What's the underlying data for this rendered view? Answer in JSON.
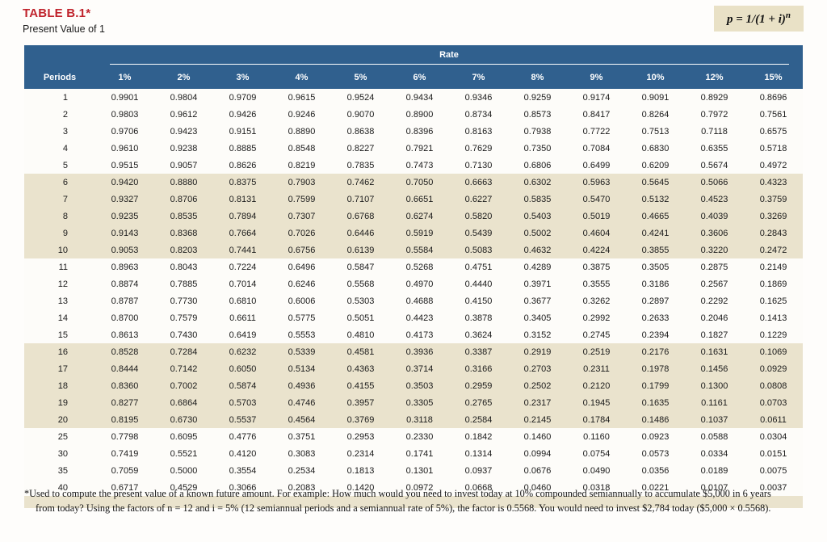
{
  "header": {
    "title": "TABLE B.1*",
    "subtitle": "Present Value of 1",
    "formula_base": "p = 1/(1 + i)",
    "formula_exponent": "n"
  },
  "colors": {
    "header_blue": "#30608e",
    "band_beige": "#eae3cd",
    "formula_box_tan": "#e9e1c6",
    "title_red": "#c0232c"
  },
  "table": {
    "rate_label": "Rate",
    "periods_label": "Periods",
    "rate_headers": [
      "1%",
      "2%",
      "3%",
      "4%",
      "5%",
      "6%",
      "7%",
      "8%",
      "9%",
      "10%",
      "12%",
      "15%"
    ],
    "rows": [
      {
        "period": "1",
        "values": [
          "0.9901",
          "0.9804",
          "0.9709",
          "0.9615",
          "0.9524",
          "0.9434",
          "0.9346",
          "0.9259",
          "0.9174",
          "0.9091",
          "0.8929",
          "0.8696"
        ]
      },
      {
        "period": "2",
        "values": [
          "0.9803",
          "0.9612",
          "0.9426",
          "0.9246",
          "0.9070",
          "0.8900",
          "0.8734",
          "0.8573",
          "0.8417",
          "0.8264",
          "0.7972",
          "0.7561"
        ]
      },
      {
        "period": "3",
        "values": [
          "0.9706",
          "0.9423",
          "0.9151",
          "0.8890",
          "0.8638",
          "0.8396",
          "0.8163",
          "0.7938",
          "0.7722",
          "0.7513",
          "0.7118",
          "0.6575"
        ]
      },
      {
        "period": "4",
        "values": [
          "0.9610",
          "0.9238",
          "0.8885",
          "0.8548",
          "0.8227",
          "0.7921",
          "0.7629",
          "0.7350",
          "0.7084",
          "0.6830",
          "0.6355",
          "0.5718"
        ]
      },
      {
        "period": "5",
        "values": [
          "0.9515",
          "0.9057",
          "0.8626",
          "0.8219",
          "0.7835",
          "0.7473",
          "0.7130",
          "0.6806",
          "0.6499",
          "0.6209",
          "0.5674",
          "0.4972"
        ]
      },
      {
        "period": "6",
        "values": [
          "0.9420",
          "0.8880",
          "0.8375",
          "0.7903",
          "0.7462",
          "0.7050",
          "0.6663",
          "0.6302",
          "0.5963",
          "0.5645",
          "0.5066",
          "0.4323"
        ]
      },
      {
        "period": "7",
        "values": [
          "0.9327",
          "0.8706",
          "0.8131",
          "0.7599",
          "0.7107",
          "0.6651",
          "0.6227",
          "0.5835",
          "0.5470",
          "0.5132",
          "0.4523",
          "0.3759"
        ]
      },
      {
        "period": "8",
        "values": [
          "0.9235",
          "0.8535",
          "0.7894",
          "0.7307",
          "0.6768",
          "0.6274",
          "0.5820",
          "0.5403",
          "0.5019",
          "0.4665",
          "0.4039",
          "0.3269"
        ]
      },
      {
        "period": "9",
        "values": [
          "0.9143",
          "0.8368",
          "0.7664",
          "0.7026",
          "0.6446",
          "0.5919",
          "0.5439",
          "0.5002",
          "0.4604",
          "0.4241",
          "0.3606",
          "0.2843"
        ]
      },
      {
        "period": "10",
        "values": [
          "0.9053",
          "0.8203",
          "0.7441",
          "0.6756",
          "0.6139",
          "0.5584",
          "0.5083",
          "0.4632",
          "0.4224",
          "0.3855",
          "0.3220",
          "0.2472"
        ]
      },
      {
        "period": "11",
        "values": [
          "0.8963",
          "0.8043",
          "0.7224",
          "0.6496",
          "0.5847",
          "0.5268",
          "0.4751",
          "0.4289",
          "0.3875",
          "0.3505",
          "0.2875",
          "0.2149"
        ]
      },
      {
        "period": "12",
        "values": [
          "0.8874",
          "0.7885",
          "0.7014",
          "0.6246",
          "0.5568",
          "0.4970",
          "0.4440",
          "0.3971",
          "0.3555",
          "0.3186",
          "0.2567",
          "0.1869"
        ]
      },
      {
        "period": "13",
        "values": [
          "0.8787",
          "0.7730",
          "0.6810",
          "0.6006",
          "0.5303",
          "0.4688",
          "0.4150",
          "0.3677",
          "0.3262",
          "0.2897",
          "0.2292",
          "0.1625"
        ]
      },
      {
        "period": "14",
        "values": [
          "0.8700",
          "0.7579",
          "0.6611",
          "0.5775",
          "0.5051",
          "0.4423",
          "0.3878",
          "0.3405",
          "0.2992",
          "0.2633",
          "0.2046",
          "0.1413"
        ]
      },
      {
        "period": "15",
        "values": [
          "0.8613",
          "0.7430",
          "0.6419",
          "0.5553",
          "0.4810",
          "0.4173",
          "0.3624",
          "0.3152",
          "0.2745",
          "0.2394",
          "0.1827",
          "0.1229"
        ]
      },
      {
        "period": "16",
        "values": [
          "0.8528",
          "0.7284",
          "0.6232",
          "0.5339",
          "0.4581",
          "0.3936",
          "0.3387",
          "0.2919",
          "0.2519",
          "0.2176",
          "0.1631",
          "0.1069"
        ]
      },
      {
        "period": "17",
        "values": [
          "0.8444",
          "0.7142",
          "0.6050",
          "0.5134",
          "0.4363",
          "0.3714",
          "0.3166",
          "0.2703",
          "0.2311",
          "0.1978",
          "0.1456",
          "0.0929"
        ]
      },
      {
        "period": "18",
        "values": [
          "0.8360",
          "0.7002",
          "0.5874",
          "0.4936",
          "0.4155",
          "0.3503",
          "0.2959",
          "0.2502",
          "0.2120",
          "0.1799",
          "0.1300",
          "0.0808"
        ]
      },
      {
        "period": "19",
        "values": [
          "0.8277",
          "0.6864",
          "0.5703",
          "0.4746",
          "0.3957",
          "0.3305",
          "0.2765",
          "0.2317",
          "0.1945",
          "0.1635",
          "0.1161",
          "0.0703"
        ]
      },
      {
        "period": "20",
        "values": [
          "0.8195",
          "0.6730",
          "0.5537",
          "0.4564",
          "0.3769",
          "0.3118",
          "0.2584",
          "0.2145",
          "0.1784",
          "0.1486",
          "0.1037",
          "0.0611"
        ]
      },
      {
        "period": "25",
        "values": [
          "0.7798",
          "0.6095",
          "0.4776",
          "0.3751",
          "0.2953",
          "0.2330",
          "0.1842",
          "0.1460",
          "0.1160",
          "0.0923",
          "0.0588",
          "0.0304"
        ]
      },
      {
        "period": "30",
        "values": [
          "0.7419",
          "0.5521",
          "0.4120",
          "0.3083",
          "0.2314",
          "0.1741",
          "0.1314",
          "0.0994",
          "0.0754",
          "0.0573",
          "0.0334",
          "0.0151"
        ]
      },
      {
        "period": "35",
        "values": [
          "0.7059",
          "0.5000",
          "0.3554",
          "0.2534",
          "0.1813",
          "0.1301",
          "0.0937",
          "0.0676",
          "0.0490",
          "0.0356",
          "0.0189",
          "0.0075"
        ]
      },
      {
        "period": "40",
        "values": [
          "0.6717",
          "0.4529",
          "0.3066",
          "0.2083",
          "0.1420",
          "0.0972",
          "0.0668",
          "0.0460",
          "0.0318",
          "0.0221",
          "0.0107",
          "0.0037"
        ]
      }
    ]
  },
  "footnote": {
    "line1": "*Used to compute the present value of a known future amount. For example: How much would you need to invest today at 10% compounded semiannually to accumulate $5,000 in 6 years",
    "line2": "from today? Using the factors of n = 12 and i = 5% (12 semiannual periods and a semiannual rate of 5%), the factor is 0.5568. You would need to invest $2,784 today ($5,000 × 0.5568)."
  }
}
